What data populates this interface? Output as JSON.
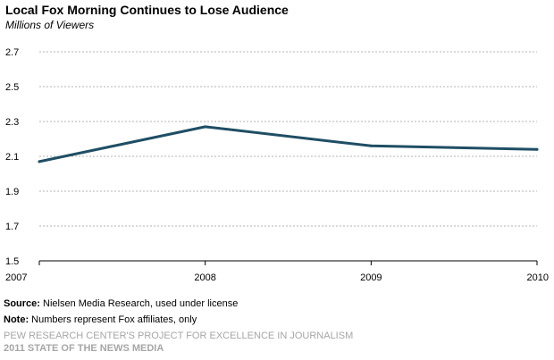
{
  "chart_data": {
    "type": "line",
    "title": "Local Fox Morning Continues to Lose Audience",
    "subtitle": "Millions of Viewers",
    "categories": [
      "2007",
      "2008",
      "2009",
      "2010"
    ],
    "series": [
      {
        "values": [
          2.07,
          2.27,
          2.16,
          2.14
        ]
      }
    ],
    "y_ticks": [
      "1.5",
      "1.7",
      "1.9",
      "2.1",
      "2.3",
      "2.5",
      "2.7"
    ],
    "ylim": [
      1.5,
      2.7
    ],
    "grid": true,
    "line_color": "#1f4e64"
  },
  "footer": {
    "source_label": "Source:",
    "source_text": "Nielsen Media Research, used under license",
    "note_label": "Note:",
    "note_text": "Numbers represent Fox affiliates, only",
    "org": "PEW RESEARCH CENTER'S PROJECT FOR EXCELLENCE IN JOURNALISM",
    "report": "2011 STATE OF THE NEWS MEDIA"
  }
}
